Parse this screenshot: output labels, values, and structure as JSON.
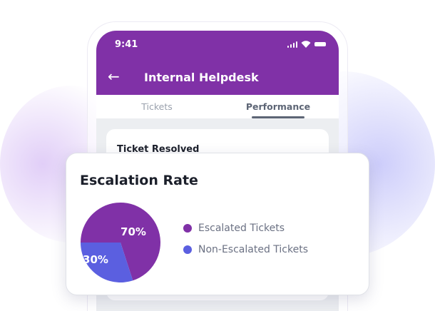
{
  "status_bar": {
    "time": "9:41",
    "icons": [
      "signal-icon",
      "wifi-icon",
      "battery-icon"
    ]
  },
  "header": {
    "title": "Internal Helpdesk",
    "back_icon": "arrow-left-icon"
  },
  "tabs": [
    {
      "label": "Tickets",
      "active": false
    },
    {
      "label": "Performance",
      "active": true
    }
  ],
  "background_card": {
    "title": "Ticket Resolved"
  },
  "colors": {
    "brand": "#8031a7",
    "escalated": "#8031a7",
    "non_escalated": "#5b5fe0"
  },
  "chart_data": {
    "type": "pie",
    "title": "Escalation Rate",
    "slices": [
      {
        "name": "Escalated Tickets",
        "value": 70,
        "label": "70%",
        "color": "#8031a7"
      },
      {
        "name": "Non-Escalated Tickets",
        "value": 30,
        "label": "30%",
        "color": "#5b5fe0"
      }
    ],
    "legend": "right"
  }
}
